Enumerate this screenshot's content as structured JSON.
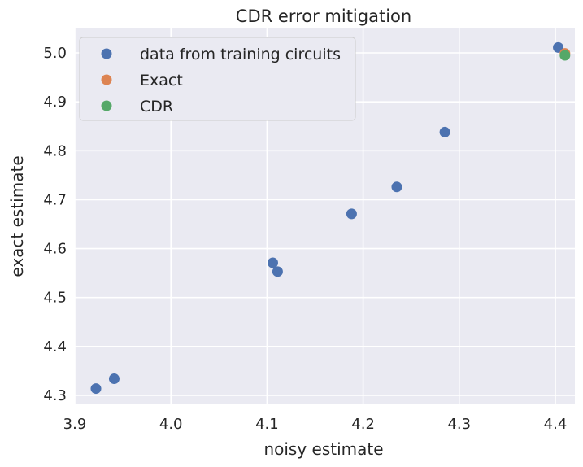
{
  "chart_data": {
    "type": "scatter",
    "title": "CDR error mitigation",
    "xlabel": "noisy estimate",
    "ylabel": "exact estimate",
    "xlim": [
      3.9,
      4.4
    ],
    "ylim": [
      4.3,
      5.0
    ],
    "xticks": [
      "3.9",
      "4.0",
      "4.1",
      "4.2",
      "4.3",
      "4.4"
    ],
    "yticks": [
      "4.3",
      "4.4",
      "4.5",
      "4.6",
      "4.7",
      "4.8",
      "4.9",
      "5.0"
    ],
    "grid": true,
    "legend_position": "top-left",
    "series": [
      {
        "name": "data from training circuits",
        "color": "#4c72b0",
        "points": [
          {
            "x": 3.922,
            "y": 4.314
          },
          {
            "x": 3.941,
            "y": 4.334
          },
          {
            "x": 4.106,
            "y": 4.571
          },
          {
            "x": 4.111,
            "y": 4.553
          },
          {
            "x": 4.188,
            "y": 4.671
          },
          {
            "x": 4.235,
            "y": 4.726
          },
          {
            "x": 4.285,
            "y": 4.838
          },
          {
            "x": 4.403,
            "y": 5.011
          }
        ]
      },
      {
        "name": "Exact",
        "color": "#dd8452",
        "points": [
          {
            "x": 4.41,
            "y": 4.999
          }
        ]
      },
      {
        "name": "CDR",
        "color": "#55a868",
        "points": [
          {
            "x": 4.41,
            "y": 4.995
          }
        ]
      }
    ]
  }
}
